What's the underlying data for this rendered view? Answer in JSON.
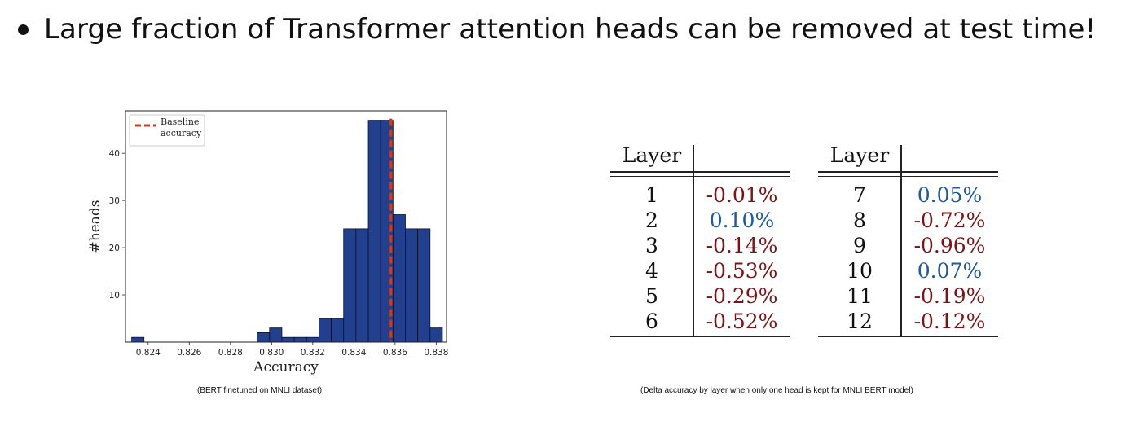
{
  "headline": "Large fraction of Transformer attention heads can be removed at test time!",
  "colors": {
    "bar_fill": "#23408e",
    "bar_edge": "#0a1030",
    "baseline_line": "#cc3b22",
    "negative_delta": "#7a1417",
    "positive_delta": "#1f5a99"
  },
  "chart_data": {
    "type": "bar",
    "subtype": "histogram",
    "xlabel": "Accuracy",
    "ylabel": "#heads",
    "xlim": [
      0.8229,
      0.8385
    ],
    "ylim": [
      0,
      49
    ],
    "xticks": [
      0.824,
      0.826,
      0.828,
      0.83,
      0.832,
      0.834,
      0.836,
      0.838
    ],
    "xtick_labels": [
      "0.824",
      "0.826",
      "0.828",
      "0.830",
      "0.832",
      "0.834",
      "0.836",
      "0.838"
    ],
    "yticks": [
      10,
      20,
      30,
      40
    ],
    "ytick_labels": [
      "10",
      "20",
      "30",
      "40"
    ],
    "bins": [
      {
        "start": 0.8232,
        "end": 0.8238,
        "count": 1
      },
      {
        "start": 0.8293,
        "end": 0.8299,
        "count": 2
      },
      {
        "start": 0.8299,
        "end": 0.8305,
        "count": 3
      },
      {
        "start": 0.8305,
        "end": 0.8311,
        "count": 1
      },
      {
        "start": 0.8311,
        "end": 0.8317,
        "count": 1
      },
      {
        "start": 0.8317,
        "end": 0.8323,
        "count": 1
      },
      {
        "start": 0.8323,
        "end": 0.8329,
        "count": 5
      },
      {
        "start": 0.8329,
        "end": 0.8335,
        "count": 5
      },
      {
        "start": 0.8335,
        "end": 0.8341,
        "count": 24
      },
      {
        "start": 0.8341,
        "end": 0.8347,
        "count": 24
      },
      {
        "start": 0.8347,
        "end": 0.8353,
        "count": 47
      },
      {
        "start": 0.8353,
        "end": 0.8359,
        "count": 47
      },
      {
        "start": 0.8359,
        "end": 0.8365,
        "count": 27
      },
      {
        "start": 0.8365,
        "end": 0.8371,
        "count": 24
      },
      {
        "start": 0.8371,
        "end": 0.8377,
        "count": 24
      },
      {
        "start": 0.8377,
        "end": 0.8383,
        "count": 3
      }
    ],
    "baseline_accuracy": 0.8358,
    "legend": {
      "label_line1": "Baseline",
      "label_line2": "accuracy",
      "placement": "upper-left"
    },
    "grid": false
  },
  "caption_left": "(BERT finetuned on MNLI dataset)",
  "caption_right": "(Delta accuracy by layer when only one head is kept for MNLI BERT model)",
  "tables": [
    {
      "header": "Layer",
      "rows": [
        {
          "layer": "1",
          "delta": "-0.01%",
          "sign": "neg"
        },
        {
          "layer": "2",
          "delta": "0.10%",
          "sign": "pos"
        },
        {
          "layer": "3",
          "delta": "-0.14%",
          "sign": "neg"
        },
        {
          "layer": "4",
          "delta": "-0.53%",
          "sign": "neg"
        },
        {
          "layer": "5",
          "delta": "-0.29%",
          "sign": "neg"
        },
        {
          "layer": "6",
          "delta": "-0.52%",
          "sign": "neg"
        }
      ]
    },
    {
      "header": "Layer",
      "rows": [
        {
          "layer": "7",
          "delta": "0.05%",
          "sign": "pos"
        },
        {
          "layer": "8",
          "delta": "-0.72%",
          "sign": "neg"
        },
        {
          "layer": "9",
          "delta": "-0.96%",
          "sign": "neg"
        },
        {
          "layer": "10",
          "delta": "0.07%",
          "sign": "pos"
        },
        {
          "layer": "11",
          "delta": "-0.19%",
          "sign": "neg"
        },
        {
          "layer": "12",
          "delta": "-0.12%",
          "sign": "neg"
        }
      ]
    }
  ]
}
